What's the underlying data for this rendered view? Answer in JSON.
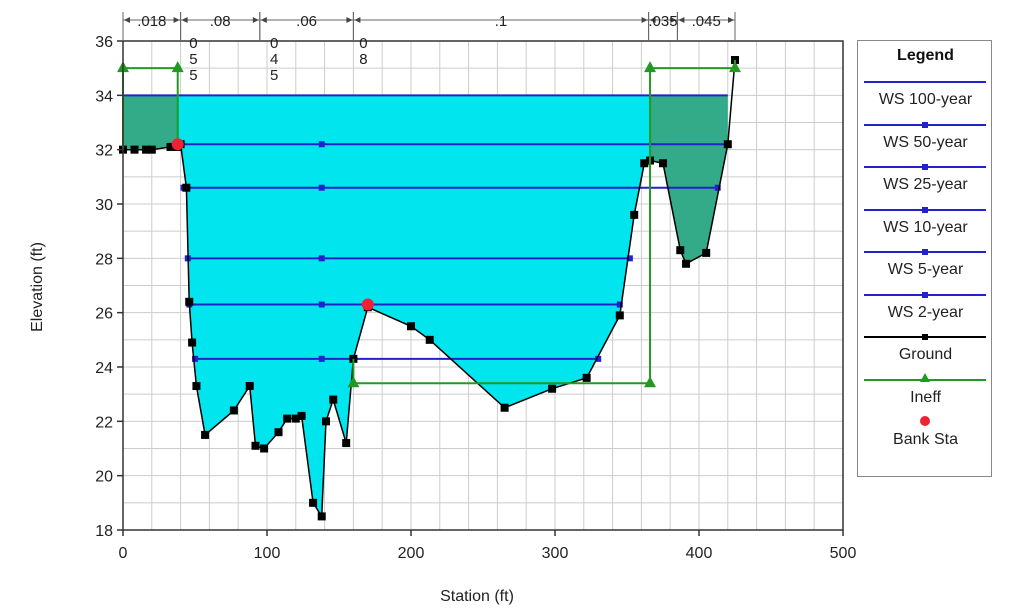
{
  "chart_data": {
    "type": "area",
    "xlabel": "Station (ft)",
    "ylabel": "Elevation (ft)",
    "xlim": [
      0,
      500
    ],
    "ylim": [
      18,
      36
    ],
    "xticks": [
      0,
      100,
      200,
      300,
      400,
      500
    ],
    "yticks": [
      18,
      20,
      22,
      24,
      26,
      28,
      30,
      32,
      34,
      36
    ],
    "grid": true,
    "legend_title": "Legend",
    "legend_position": "right",
    "manning_n": [
      {
        "label": ".018",
        "x_start": 0,
        "x_end": 40
      },
      {
        "label": ".08",
        "x_start": 40,
        "x_end": 95
      },
      {
        "label": ".06",
        "x_start": 95,
        "x_end": 160
      },
      {
        "label": ".1",
        "x_start": 160,
        "x_end": 365
      },
      {
        "label": ".035",
        "x_start": 365,
        "x_end": 385
      },
      {
        "label": ".045",
        "x_start": 385,
        "x_end": 425
      }
    ],
    "station_labels": [
      {
        "x": 42,
        "lines": [
          "0",
          "5",
          "5"
        ]
      },
      {
        "x": 98,
        "lines": [
          "0",
          "4",
          "5"
        ]
      },
      {
        "x": 160,
        "lines": [
          "0",
          "8"
        ]
      }
    ],
    "ground": {
      "name": "Ground",
      "x": [
        0,
        8,
        16,
        20,
        33,
        38,
        40,
        44,
        46,
        48,
        51,
        57,
        77,
        88,
        92,
        98,
        108,
        114,
        120,
        124,
        132,
        138,
        141,
        146,
        155,
        160,
        170,
        200,
        213,
        265,
        298,
        322,
        345,
        355,
        362,
        366,
        375,
        387,
        391,
        405,
        420,
        425
      ],
      "y": [
        32.0,
        32.0,
        32.0,
        32.0,
        32.1,
        32.1,
        32.2,
        30.6,
        26.4,
        24.9,
        23.3,
        21.5,
        22.4,
        23.3,
        21.1,
        21.0,
        21.6,
        22.1,
        22.1,
        22.2,
        19.0,
        18.5,
        22.0,
        22.8,
        21.2,
        24.3,
        26.2,
        25.5,
        25.0,
        22.5,
        23.2,
        23.6,
        25.9,
        29.6,
        31.5,
        31.6,
        31.5,
        28.3,
        27.8,
        28.2,
        32.2,
        35.3
      ]
    },
    "water_surfaces": [
      {
        "name": "WS 100-year",
        "elevation": 34.0,
        "x_start": 0,
        "x_end": 420
      },
      {
        "name": "WS 50-year",
        "elevation": 32.2,
        "x_start": 40,
        "x_end": 420
      },
      {
        "name": "WS 25-year",
        "elevation": 30.6,
        "x_start": 42,
        "x_end": 413
      },
      {
        "name": "WS 10-year",
        "elevation": 28.0,
        "x_start": 45,
        "x_end": 352
      },
      {
        "name": "WS 5-year",
        "elevation": 26.3,
        "x_start": 46,
        "x_end": 345
      },
      {
        "name": "WS 2-year",
        "elevation": 24.3,
        "x_start": 50,
        "x_end": 330
      }
    ],
    "ineffective_flow": [
      {
        "name": "Ineff",
        "x": [
          0,
          38
        ],
        "elevation": 35.0
      },
      {
        "name": "Ineff",
        "x": [
          160,
          366
        ],
        "elevation": 23.4
      },
      {
        "name": "Ineff",
        "x": [
          366,
          425
        ],
        "elevation": 35.0
      }
    ],
    "bank_stations": [
      {
        "x": 38,
        "y": 32.2
      },
      {
        "x": 170,
        "y": 26.3
      }
    ],
    "legend": [
      "WS 100-year",
      "WS 50-year",
      "WS 25-year",
      "WS 10-year",
      "WS 5-year",
      "WS 2-year",
      "Ground",
      "Ineff",
      "Bank Sta"
    ],
    "colors": {
      "water": "#00e5ee",
      "overbank": "#33aa88",
      "ws_line": "#2222cc",
      "ground": "#000000",
      "ineff": "#229922",
      "bank": "#ee2233",
      "grid": "#cccccc"
    }
  }
}
